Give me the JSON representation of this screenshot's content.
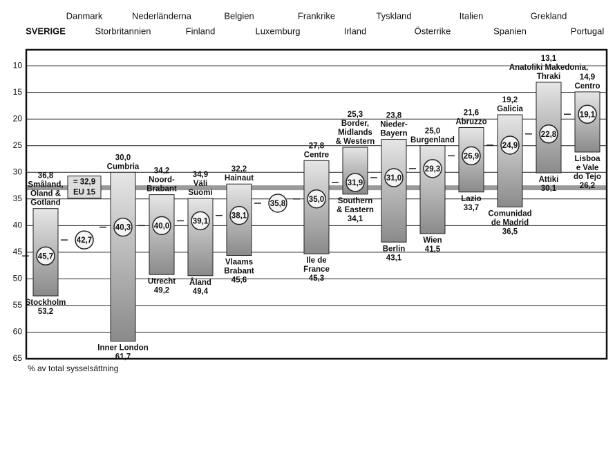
{
  "chart_data": {
    "type": "range-bar",
    "y_label": "% av total sysselsättning",
    "ylim": [
      65,
      7
    ],
    "yticks": [
      10,
      15,
      20,
      25,
      30,
      35,
      40,
      45,
      50,
      55,
      60,
      65
    ],
    "grid": true,
    "bar_color": "#b0b0b0",
    "eu_label": "EU 15",
    "eu_value": 32.9,
    "eu_value_label": "= 32,9",
    "series": [
      {
        "name": "SVERIGE",
        "min": 36.8,
        "max": 53.2,
        "avg": 45.7,
        "min_label": "36,8",
        "max_label": "53,2",
        "avg_label": "45,7",
        "min_region": [
          "Småland,",
          "Öland &",
          "Gotland"
        ],
        "max_region": [
          "Stockholm"
        ]
      },
      {
        "name": "Danmark",
        "avg": 42.7,
        "avg_label": "42,7"
      },
      {
        "name": "Storbritannien",
        "min": 30.0,
        "max": 61.7,
        "avg": 40.3,
        "min_label": "30,0",
        "max_label": "61,7",
        "avg_label": "40,3",
        "min_region": [
          "Cumbria"
        ],
        "max_region": [
          "Inner London"
        ]
      },
      {
        "name": "Nederländerna",
        "min": 34.2,
        "max": 49.2,
        "avg": 40.0,
        "min_label": "34,2",
        "max_label": "49,2",
        "avg_label": "40,0",
        "min_region": [
          "Noord-",
          "Brabant"
        ],
        "max_region": [
          "Utrecht"
        ]
      },
      {
        "name": "Finland",
        "min": 34.9,
        "max": 49.4,
        "avg": 39.1,
        "min_label": "34,9",
        "max_label": "49,4",
        "avg_label": "39,1",
        "min_region": [
          "Väli",
          "Suomi"
        ],
        "max_region": [
          "Åland"
        ]
      },
      {
        "name": "Belgien",
        "min": 32.2,
        "max": 45.6,
        "avg": 38.1,
        "min_label": "32,2",
        "max_label": "45,6",
        "avg_label": "38,1",
        "min_region": [
          "Hainaut"
        ],
        "max_region": [
          "Vlaams",
          "Brabant"
        ]
      },
      {
        "name": "Luxemburg",
        "avg": 35.8,
        "avg_label": "35,8"
      },
      {
        "name": "Frankrike",
        "min": 27.8,
        "max": 45.3,
        "avg": 35.0,
        "min_label": "27,8",
        "max_label": "45,3",
        "avg_label": "35,0",
        "min_region": [
          "Centre"
        ],
        "max_region": [
          "Ile de",
          "France"
        ]
      },
      {
        "name": "Irland",
        "min": 25.3,
        "max": 34.1,
        "avg": 31.9,
        "min_label": "25,3",
        "max_label": "34,1",
        "avg_label": "31,9",
        "min_region": [
          "Border,",
          "Midlands",
          "& Western"
        ],
        "max_region": [
          "Southern",
          "& Eastern"
        ]
      },
      {
        "name": "Tyskland",
        "min": 23.8,
        "max": 43.1,
        "avg": 31.0,
        "min_label": "23,8",
        "max_label": "43,1",
        "avg_label": "31,0",
        "min_region": [
          "Nieder-",
          "Bayern"
        ],
        "max_region": [
          "Berlin"
        ]
      },
      {
        "name": "Österrike",
        "min": 25.0,
        "max": 41.5,
        "avg": 29.3,
        "min_label": "25,0",
        "max_label": "41,5",
        "avg_label": "29,3",
        "min_region": [
          "Burgenland"
        ],
        "max_region": [
          "Wien"
        ]
      },
      {
        "name": "Italien",
        "min": 21.6,
        "max": 33.7,
        "avg": 26.9,
        "min_label": "21,6",
        "max_label": "33,7",
        "avg_label": "26,9",
        "min_region": [
          "Abruzzo"
        ],
        "max_region": [
          "Lazio"
        ]
      },
      {
        "name": "Spanien",
        "min": 19.2,
        "max": 36.5,
        "avg": 24.9,
        "min_label": "19,2",
        "max_label": "36,5",
        "avg_label": "24,9",
        "min_region": [
          "Galicia"
        ],
        "max_region": [
          "Comunidad",
          "de Madrid"
        ]
      },
      {
        "name": "Grekland",
        "min": 13.1,
        "max": 30.1,
        "avg": 22.8,
        "min_label": "13,1",
        "max_label": "30,1",
        "avg_label": "22,8",
        "min_region": [
          "Anatoliki Makedonia,",
          "Thraki"
        ],
        "max_region": [
          "Attiki"
        ]
      },
      {
        "name": "Portugal",
        "min": 14.9,
        "max": 26.2,
        "avg": 19.1,
        "min_label": "14,9",
        "max_label": "26,2",
        "avg_label": "19,1",
        "min_region": [
          "Centro"
        ],
        "max_region": [
          "Lisboa",
          "e Vale",
          "do Tejo"
        ]
      }
    ]
  }
}
